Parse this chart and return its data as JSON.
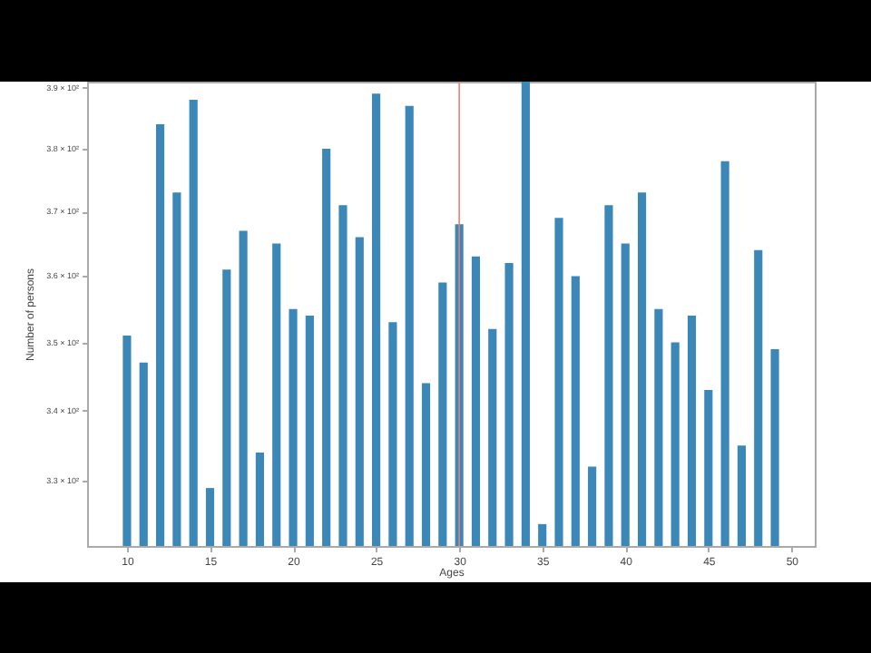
{
  "chart_data": {
    "type": "bar",
    "xlabel": "Ages",
    "ylabel": "Number of persons",
    "color": "#3a87b8",
    "x": [
      10,
      11,
      12,
      13,
      14,
      15,
      16,
      17,
      18,
      19,
      20,
      21,
      22,
      23,
      24,
      25,
      26,
      27,
      28,
      29,
      30,
      31,
      32,
      33,
      34,
      35,
      36,
      37,
      38,
      39,
      40,
      41,
      42,
      43,
      44,
      45,
      46,
      47,
      48,
      49
    ],
    "values": [
      351,
      347,
      384,
      373,
      388,
      329,
      361,
      367,
      334,
      365,
      355,
      354,
      380,
      371,
      366,
      389,
      353,
      387,
      344,
      359,
      368,
      363,
      352,
      362,
      391,
      324,
      369,
      360,
      332,
      371,
      365,
      373,
      355,
      350,
      354,
      343,
      378,
      335,
      364,
      349
    ],
    "log": "y",
    "xlim": [
      7.6,
      51.4
    ],
    "xticks": [
      10,
      15,
      20,
      25,
      30,
      35,
      40,
      45,
      50
    ],
    "ylim": [
      321,
      391
    ],
    "yticks": [
      {
        "value": 330,
        "label": "3.3 × 10²"
      },
      {
        "value": 340,
        "label": "3.4 × 10²"
      },
      {
        "value": 350,
        "label": "3.5 × 10²"
      },
      {
        "value": 360,
        "label": "3.6 × 10²"
      },
      {
        "value": 370,
        "label": "3.7 × 10²"
      },
      {
        "value": 380,
        "label": "3.8 × 10²"
      },
      {
        "value": 390,
        "label": "3.9 × 10²"
      }
    ],
    "ref_lines": [
      {
        "axis": "x",
        "value": 30,
        "color": "#e8806e"
      }
    ],
    "grid": false
  }
}
